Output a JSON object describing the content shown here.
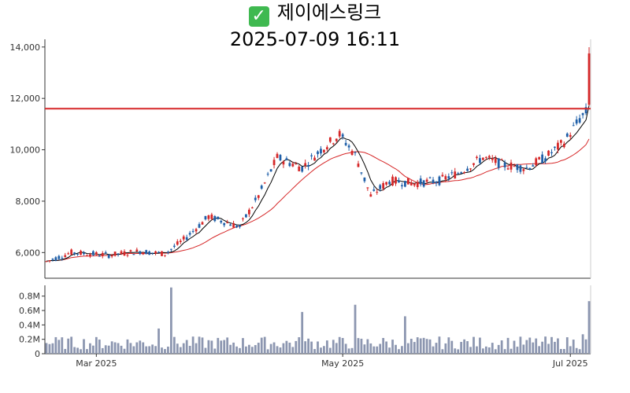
{
  "title": {
    "icon": "check-icon",
    "name": "제이에스링크",
    "datetime": "2025-07-09 16:11"
  },
  "chart_data": [
    {
      "type": "candlestick",
      "title": "",
      "xlabel": "",
      "ylabel": "",
      "ylim": [
        5000,
        14300
      ],
      "y_ticks": [
        "6,000",
        "8,000",
        "10,000",
        "12,000",
        "14,000"
      ],
      "y_tick_values": [
        6000,
        8000,
        10000,
        12000,
        14000
      ],
      "x_ticks": [
        {
          "label": "Mar 2025",
          "index": 16
        },
        {
          "label": "May 2025",
          "index": 95
        },
        {
          "label": "Jul 2025",
          "index": 168
        }
      ],
      "reference_line": {
        "value": 11600,
        "color": "#d62728"
      },
      "up_color": "#d62728",
      "down_color": "#1f5fa8",
      "ma_short_color": "#000000",
      "ma_long_color": "#d62728",
      "candles": []
    },
    {
      "type": "bar",
      "title": "",
      "ylim": [
        0,
        950000
      ],
      "y_ticks": [
        "0",
        "0.2M",
        "0.4M",
        "0.6M",
        "0.8M"
      ],
      "y_tick_values": [
        0,
        200000,
        400000,
        600000,
        800000
      ],
      "bar_color": "#8c96b0",
      "values": []
    }
  ]
}
